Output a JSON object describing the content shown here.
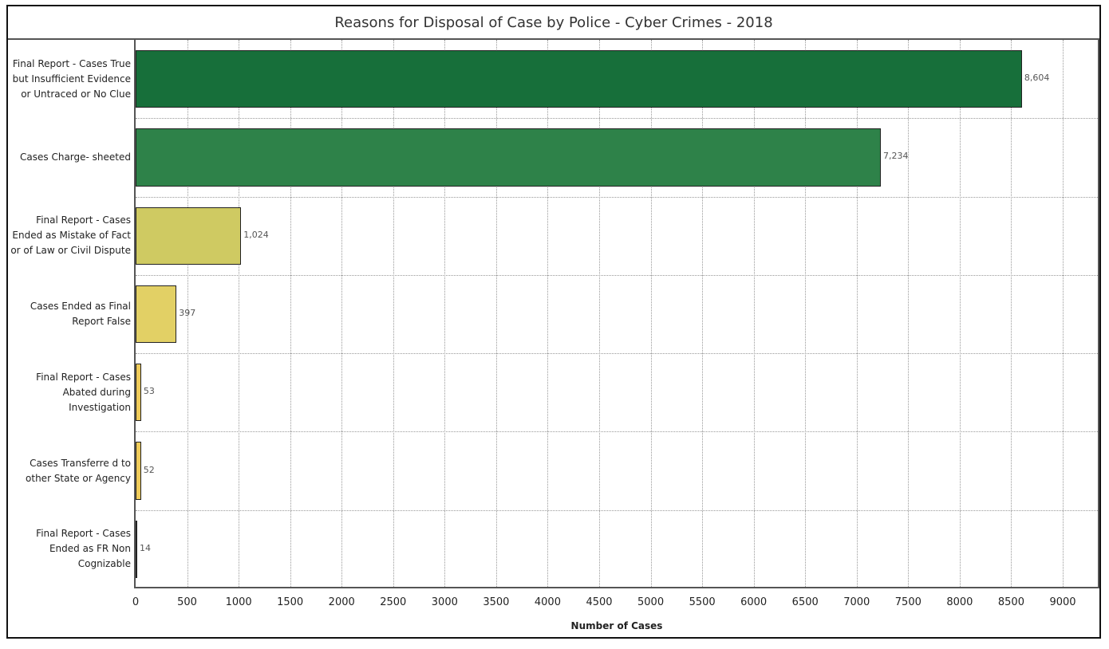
{
  "chart_data": {
    "type": "bar",
    "orientation": "horizontal",
    "title": "Reasons for Disposal of Case by Police - Cyber Crimes - 2018",
    "xlabel": "Number of Cases",
    "ylabel": "",
    "xlim": [
      0,
      9300
    ],
    "x_ticks": [
      "0",
      "500",
      "1000",
      "1500",
      "2000",
      "2500",
      "3000",
      "3500",
      "4000",
      "4500",
      "5000",
      "5500",
      "6000",
      "6500",
      "7000",
      "7500",
      "8000",
      "8500",
      "9000"
    ],
    "grid": true,
    "legend": null,
    "categories": [
      "Final Report - Cases True but Insufficient Evidence or Untraced or No Clue",
      "Cases Charge- sheeted",
      "Final Report - Cases Ended as Mistake of Fact or of Law or Civil Dispute",
      "Cases Ended as Final Report False",
      "Final Report - Cases Abated during Investigation",
      "Cases Transferre d to other State or Agency",
      "Final Report - Cases Ended as FR Non Cognizable"
    ],
    "category_lines": [
      [
        "Final Report - Cases True",
        "but Insufficient Evidence",
        "or Untraced or No Clue"
      ],
      [
        "Cases Charge- sheeted"
      ],
      [
        "Final Report - Cases",
        "Ended as Mistake of Fact",
        "or of Law or Civil Dispute"
      ],
      [
        "Cases Ended as Final",
        "Report False"
      ],
      [
        "Final Report - Cases",
        "Abated during",
        "Investigation"
      ],
      [
        "Cases Transferre d to",
        "other State or Agency"
      ],
      [
        "Final Report - Cases",
        "Ended as FR Non",
        "Cognizable"
      ]
    ],
    "values": [
      8604,
      7234,
      1024,
      397,
      53,
      52,
      14
    ],
    "value_labels": [
      "8,604",
      "7,234",
      "1,024",
      "397",
      "53",
      "52",
      "14"
    ],
    "colors": [
      "#176f3a",
      "#2e8249",
      "#cfca62",
      "#e2d065",
      "#efcb5a",
      "#efcb5a",
      "#9c9445"
    ]
  }
}
